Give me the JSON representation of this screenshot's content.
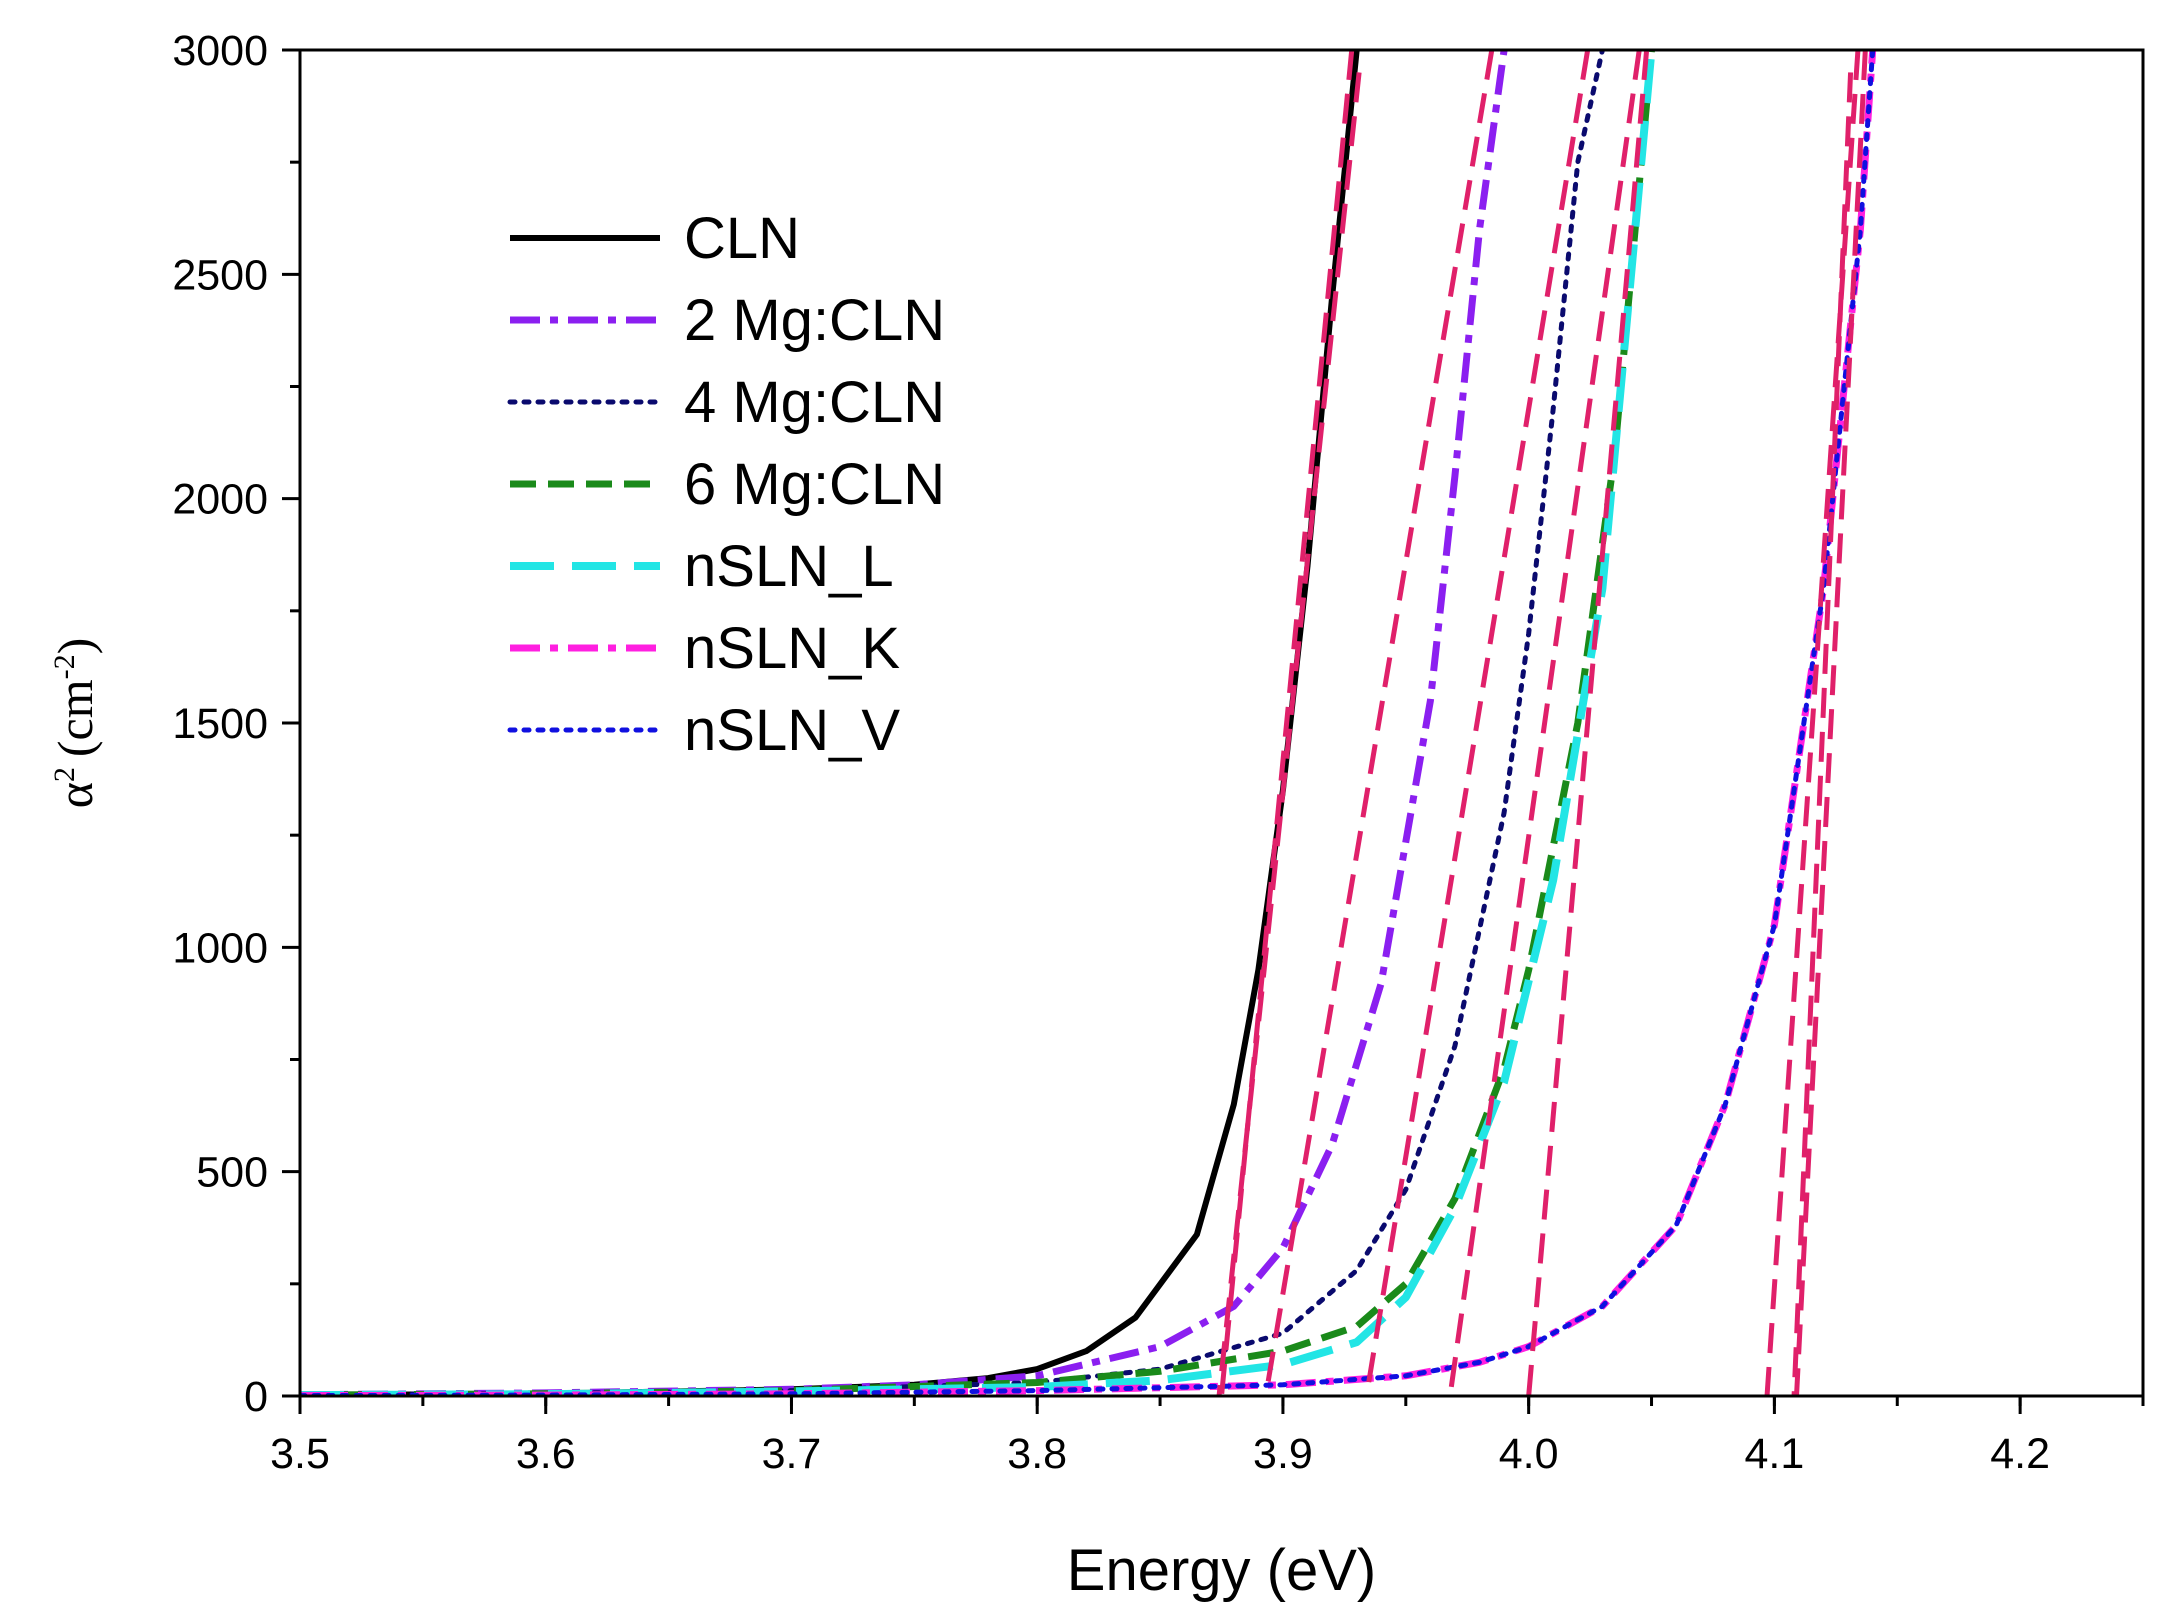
{
  "chart_data": {
    "type": "line",
    "title": "",
    "xlabel": "Energy (eV)",
    "ylabel": "α² (cm⁻²)",
    "ylabel_parts": {
      "symbol": "α",
      "sup1": "2",
      "unit": "(cm",
      "sup2": "-2",
      "close": ")"
    },
    "xlim": [
      3.5,
      4.25
    ],
    "ylim": [
      0,
      3000
    ],
    "xticks": [
      "3.5",
      "3.6",
      "3.7",
      "3.8",
      "3.9",
      "4.0",
      "4.1",
      "4.2"
    ],
    "xtick_values": [
      3.5,
      3.6,
      3.7,
      3.8,
      3.9,
      4.0,
      4.1,
      4.2
    ],
    "yticks": [
      "0",
      "500",
      "1000",
      "1500",
      "2000",
      "2500",
      "3000"
    ],
    "ytick_values": [
      0,
      500,
      1000,
      1500,
      2000,
      2500,
      3000
    ],
    "legend_position": "upper-left",
    "series": [
      {
        "name": "CLN",
        "color": "#000000",
        "dash": "solid",
        "x": [
          3.5,
          3.6,
          3.7,
          3.75,
          3.78,
          3.8,
          3.82,
          3.84,
          3.865,
          3.88,
          3.89,
          3.9,
          3.91,
          3.92,
          3.93
        ],
        "y": [
          2,
          5,
          15,
          25,
          40,
          60,
          100,
          175,
          360,
          650,
          950,
          1350,
          1850,
          2450,
          3000
        ]
      },
      {
        "name": "2 Mg:CLN",
        "color": "#8B1FF0",
        "dash": "dashdot",
        "x": [
          3.5,
          3.6,
          3.7,
          3.75,
          3.8,
          3.85,
          3.88,
          3.9,
          3.92,
          3.94,
          3.96,
          3.97,
          3.98,
          3.99
        ],
        "y": [
          3,
          7,
          15,
          25,
          45,
          110,
          200,
          330,
          560,
          920,
          1550,
          2050,
          2600,
          3000
        ]
      },
      {
        "name": "4 Mg:CLN",
        "color": "#0A0A6E",
        "dash": "dot",
        "x": [
          3.5,
          3.6,
          3.7,
          3.8,
          3.85,
          3.9,
          3.93,
          3.95,
          3.97,
          3.99,
          4.0,
          4.01,
          4.02,
          4.03
        ],
        "y": [
          3,
          6,
          12,
          30,
          60,
          140,
          280,
          460,
          780,
          1300,
          1700,
          2200,
          2750,
          3000
        ]
      },
      {
        "name": "6 Mg:CLN",
        "color": "#1A8A1A",
        "dash": "dash",
        "x": [
          3.5,
          3.6,
          3.7,
          3.8,
          3.85,
          3.9,
          3.93,
          3.95,
          3.97,
          3.99,
          4.0,
          4.02,
          4.035,
          4.045,
          4.05
        ],
        "y": [
          2,
          5,
          12,
          30,
          55,
          100,
          155,
          250,
          440,
          730,
          950,
          1500,
          2100,
          2700,
          3000
        ]
      },
      {
        "name": "nSLN_L",
        "color": "#22E5E5",
        "dash": "longdash",
        "x": [
          3.5,
          3.6,
          3.7,
          3.8,
          3.85,
          3.9,
          3.93,
          3.95,
          3.97,
          3.99,
          4.01,
          4.03,
          4.04,
          4.05
        ],
        "y": [
          2,
          4,
          10,
          20,
          35,
          70,
          120,
          220,
          420,
          700,
          1150,
          1800,
          2400,
          3000
        ]
      },
      {
        "name": "nSLN_K",
        "color": "#FF1FE0",
        "dash": "dashdot",
        "x": [
          3.5,
          3.6,
          3.7,
          3.8,
          3.9,
          3.95,
          3.98,
          4.0,
          4.03,
          4.06,
          4.08,
          4.1,
          4.12,
          4.135,
          4.14
        ],
        "y": [
          1,
          2,
          5,
          12,
          25,
          45,
          75,
          110,
          200,
          380,
          650,
          1050,
          1800,
          2600,
          3000
        ]
      },
      {
        "name": "nSLN_V",
        "color": "#1010E0",
        "dash": "dot",
        "x": [
          3.5,
          3.6,
          3.7,
          3.8,
          3.9,
          3.95,
          3.98,
          4.0,
          4.03,
          4.06,
          4.08,
          4.1,
          4.12,
          4.135,
          4.14
        ],
        "y": [
          1,
          2,
          5,
          12,
          25,
          45,
          75,
          110,
          200,
          380,
          650,
          1050,
          1800,
          2600,
          3000
        ]
      }
    ],
    "fit_lines": {
      "color": "#E0206A",
      "dash": "dash",
      "segments": [
        {
          "x": [
            3.928,
            3.875
          ],
          "y": [
            3000,
            0
          ]
        },
        {
          "x": [
            3.985,
            3.893
          ],
          "y": [
            3000,
            0
          ]
        },
        {
          "x": [
            4.024,
            3.934
          ],
          "y": [
            3000,
            0
          ]
        },
        {
          "x": [
            4.045,
            3.968
          ],
          "y": [
            3000,
            0
          ]
        },
        {
          "x": [
            4.048,
            4.0
          ],
          "y": [
            3000,
            0
          ]
        },
        {
          "x": [
            4.134,
            4.097
          ],
          "y": [
            3000,
            0
          ]
        },
        {
          "x": [
            4.137,
            4.109
          ],
          "y": [
            3000,
            0
          ]
        }
      ],
      "end_segments": [
        {
          "x": [
            3.931,
            3.874
          ],
          "y": [
            2950,
            0
          ]
        },
        {
          "x": [
            4.131,
            4.108
          ],
          "y": [
            2950,
            0
          ]
        }
      ]
    },
    "baseline": {
      "x": [
        3.5,
        4.2
      ],
      "y": [
        0,
        0
      ],
      "color": "#000000",
      "dash": "fine-dot"
    }
  }
}
